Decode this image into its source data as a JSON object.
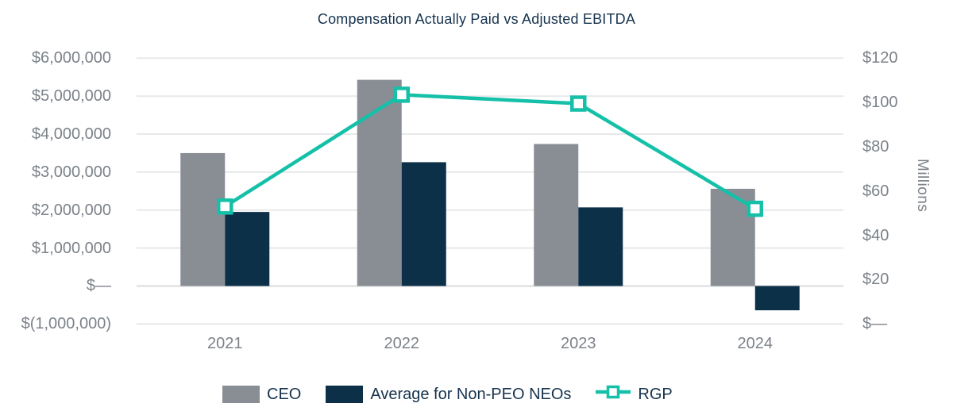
{
  "colors": {
    "bar_gray": "#898e95",
    "bar_navy": "#0d3049",
    "line_teal": "#15c0a8",
    "title_text": "#16334e",
    "axis_text": "#7c8289",
    "gridline": "#e8e9eb",
    "zero_line": "#d9dbde",
    "marker_fill": "#ffffff"
  },
  "chart_data": {
    "type": "bar",
    "subtype": "grouped-bars-with-line-combo",
    "title": "Compensation Actually Paid vs Adjusted EBITDA",
    "categories": [
      "2021",
      "2022",
      "2023",
      "2024"
    ],
    "series": [
      {
        "name": "CEO",
        "type": "bar",
        "axis": "left",
        "color": "#898e95",
        "values": [
          3500000,
          5430000,
          3740000,
          2560000
        ]
      },
      {
        "name": "Average for Non-PEO NEOs",
        "type": "bar",
        "axis": "left",
        "color": "#0d3049",
        "values": [
          1950000,
          3260000,
          2070000,
          -640000
        ]
      },
      {
        "name": "RGP",
        "type": "line",
        "axis": "right",
        "color": "#15c0a8",
        "marker": "open-square",
        "values": [
          53,
          103.5,
          99.5,
          52
        ]
      }
    ],
    "left_axis": {
      "min": -1000000,
      "max": 6000000,
      "ticks": [
        "$6,000,000",
        "$5,000,000",
        "$4,000,000",
        "$3,000,000",
        "$2,000,000",
        "$1,000,000",
        "$—",
        "$(1,000,000)"
      ]
    },
    "right_axis": {
      "min": 0,
      "max": 120,
      "label": "Millions",
      "ticks": [
        "$120",
        "$100",
        "$80",
        "$60",
        "$40",
        "$20",
        "$—"
      ]
    },
    "grid": true,
    "legend_position": "bottom"
  }
}
